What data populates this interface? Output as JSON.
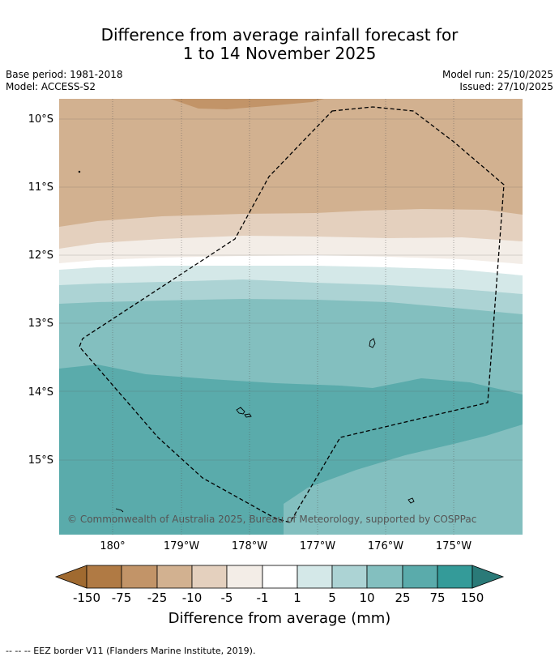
{
  "title": {
    "line1": "Difference from average rainfall forecast for",
    "line2": "1 to 14 November 2025"
  },
  "meta": {
    "base_period": "Base period: 1981-2018",
    "model": "Model: ACCESS-S2",
    "model_run": "Model run: 25/10/2025",
    "issued": "Issued: 27/10/2025"
  },
  "map": {
    "lat_labels": [
      "10°S",
      "11°S",
      "12°S",
      "13°S",
      "14°S",
      "15°S"
    ],
    "lon_labels": [
      "180°",
      "179°W",
      "178°W",
      "177°W",
      "176°W",
      "175°W"
    ],
    "copyright": "© Commonwealth of Australia 2025, Bureau of Meteorology, supported by COSPPac"
  },
  "colorbar": {
    "label": "Difference from average (mm)",
    "ticks": [
      "-150",
      "-75",
      "-25",
      "-10",
      "-5",
      "-1",
      "1",
      "5",
      "10",
      "25",
      "75",
      "150"
    ],
    "colors": {
      "lt_neg150": "#a06a30",
      "neg150_neg75": "#b07a44",
      "neg75_neg25": "#c29468",
      "neg25_neg10": "#d2b190",
      "neg10_neg5": "#e4d0be",
      "neg5_neg1": "#f3ede7",
      "neg1_1": "#ffffff",
      "1_5": "#d4e8e8",
      "5_10": "#acd3d4",
      "10_25": "#83bfbf",
      "25_75": "#5aabab",
      "75_150": "#349b99",
      "gt_150": "#2a7a78"
    }
  },
  "footnote": "--  --  -- EEZ border V11 (Flanders Marine Institute, 2019)."
}
